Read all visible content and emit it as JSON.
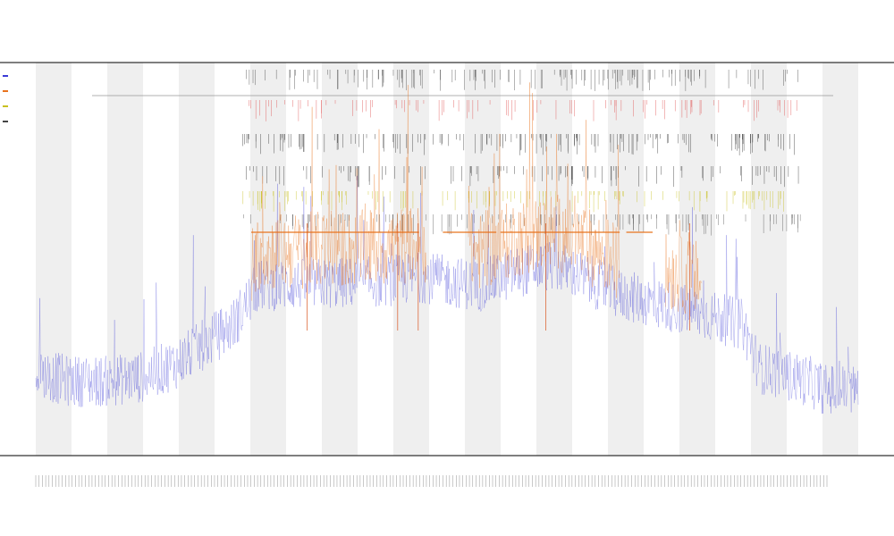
{
  "chart_data": {
    "type": "line",
    "title_lines": [
      "",
      "",
      ""
    ],
    "xlabel": "",
    "ylabel": "",
    "grid": false,
    "alternating_bands": 23,
    "sample_count": 1400,
    "series": [
      {
        "color": "#3a3ad6",
        "values_profile": [
          [
            0.0,
            0.085
          ],
          [
            0.04,
            0.075
          ],
          [
            0.09,
            0.075
          ],
          [
            0.13,
            0.08
          ],
          [
            0.17,
            0.095
          ],
          [
            0.24,
            0.14
          ],
          [
            0.27,
            0.185
          ],
          [
            0.42,
            0.19
          ],
          [
            0.47,
            0.195
          ],
          [
            0.54,
            0.185
          ],
          [
            0.58,
            0.2
          ],
          [
            0.63,
            0.21
          ],
          [
            0.71,
            0.175
          ],
          [
            0.8,
            0.155
          ],
          [
            0.86,
            0.14
          ],
          [
            0.88,
            0.09
          ],
          [
            0.94,
            0.075
          ],
          [
            0.96,
            0.065
          ]
        ]
      },
      {
        "color": "#e8731e",
        "active_ranges": [
          [
            0.262,
            0.475
          ],
          [
            0.526,
            0.71
          ],
          [
            0.765,
            0.81
          ]
        ],
        "step_line_ranges": [
          [
            0.262,
            0.466
          ],
          [
            0.495,
            0.56
          ],
          [
            0.565,
            0.71
          ],
          [
            0.718,
            0.75
          ]
        ],
        "spikes": [
          0.33,
          0.44,
          0.465,
          0.62,
          0.795
        ]
      }
    ],
    "event_rows": [
      {
        "name": "row-1",
        "color": "#444444",
        "density": 0.55
      },
      {
        "name": "row-2",
        "color": "#e05050",
        "density": 0.35
      },
      {
        "name": "row-3",
        "color": "#333333",
        "density": 0.65
      },
      {
        "name": "row-4",
        "color": "#333333",
        "density": 0.4
      },
      {
        "name": "row-5",
        "color": "#c8c020",
        "density": 0.5
      },
      {
        "name": "row-6",
        "color": "#555555",
        "density": 0.45
      }
    ],
    "legend": [
      {
        "label": "",
        "color": "#3a3ad6"
      },
      {
        "label": "",
        "color": "#e8731e"
      },
      {
        "label": "",
        "color": "#c8c020"
      },
      {
        "label": "",
        "color": "#444444"
      }
    ],
    "x_tick_count": 240
  }
}
